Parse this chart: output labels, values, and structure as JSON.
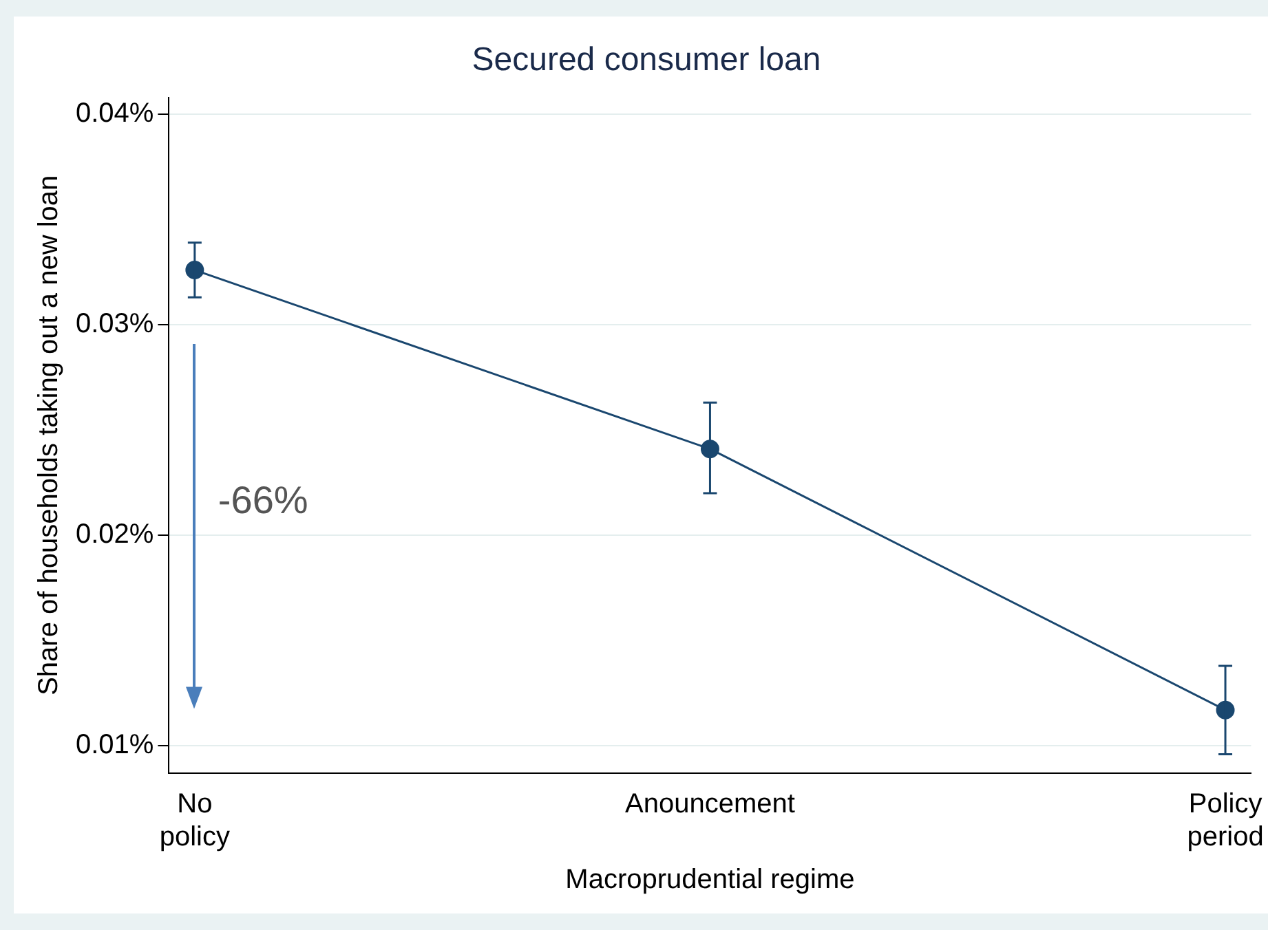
{
  "chart_data": {
    "type": "line",
    "title": "Secured consumer loan",
    "xlabel": "Macroprudential regime",
    "ylabel": "Share of households taking out a new loan",
    "categories": [
      "No policy",
      "Anouncement",
      "Policy period"
    ],
    "series": [
      {
        "color": "#1a476f",
        "values": [
          0.0326,
          0.0241,
          0.0117
        ],
        "errors": [
          [
            0.0313,
            0.0339
          ],
          [
            0.022,
            0.0263
          ],
          [
            0.0096,
            0.0138
          ]
        ]
      }
    ],
    "ylim": [
      0.0087,
      0.0408
    ],
    "yticks": [
      {
        "value": 0.01,
        "label": "0.01%"
      },
      {
        "value": 0.02,
        "label": "0.02%"
      },
      {
        "value": 0.03,
        "label": "0.03%"
      },
      {
        "value": 0.04,
        "label": "0.04%"
      }
    ],
    "grid": "y",
    "marker": "circle",
    "legend": false,
    "annotations": [
      "-66%"
    ]
  }
}
